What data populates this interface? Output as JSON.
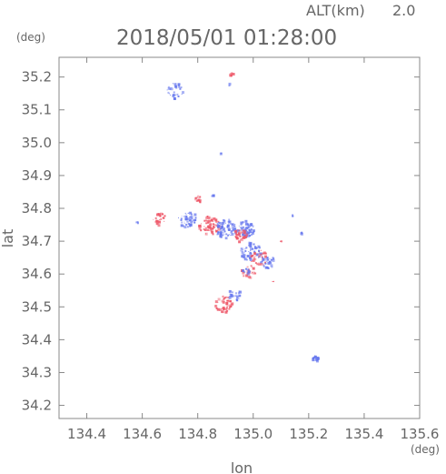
{
  "header": {
    "altitude_label": "ALT(km)",
    "altitude_value": "2.0",
    "timestamp": "2018/05/01 01:28:00",
    "y_unit": "(deg)",
    "x_unit": "(deg)"
  },
  "chart_data": {
    "type": "scatter",
    "xlabel": "lon",
    "ylabel": "lat",
    "xlim": [
      134.3,
      135.6
    ],
    "ylim": [
      34.16,
      35.26
    ],
    "x_ticks": [
      "134.4",
      "134.6",
      "134.8",
      "135.0",
      "135.2",
      "135.4",
      "135.6"
    ],
    "y_ticks": [
      "34.2",
      "34.3",
      "34.4",
      "34.5",
      "34.6",
      "34.7",
      "34.8",
      "34.9",
      "35.0",
      "35.1",
      "35.2"
    ],
    "grid": false,
    "colors": {
      "positive": "#ee5566",
      "negative": "#6677ee",
      "frame": "#888888"
    },
    "clusters": [
      {
        "lon": 134.72,
        "lat": 35.16,
        "spread": 0.025,
        "color": "negative",
        "points": 30
      },
      {
        "lon": 134.92,
        "lat": 35.21,
        "spread": 0.006,
        "color": "positive",
        "points": 10
      },
      {
        "lon": 134.91,
        "lat": 35.18,
        "spread": 0.004,
        "color": "negative",
        "points": 3
      },
      {
        "lon": 134.66,
        "lat": 34.77,
        "spread": 0.018,
        "color": "positive",
        "points": 25
      },
      {
        "lon": 134.58,
        "lat": 34.76,
        "spread": 0.004,
        "color": "negative",
        "points": 3
      },
      {
        "lon": 134.76,
        "lat": 34.77,
        "spread": 0.025,
        "color": "negative",
        "points": 50
      },
      {
        "lon": 134.84,
        "lat": 34.75,
        "spread": 0.03,
        "color": "positive",
        "points": 70
      },
      {
        "lon": 134.9,
        "lat": 34.74,
        "spread": 0.03,
        "color": "negative",
        "points": 90
      },
      {
        "lon": 134.97,
        "lat": 34.74,
        "spread": 0.025,
        "color": "negative",
        "points": 70
      },
      {
        "lon": 134.95,
        "lat": 34.72,
        "spread": 0.02,
        "color": "positive",
        "points": 40
      },
      {
        "lon": 134.8,
        "lat": 34.83,
        "spread": 0.01,
        "color": "positive",
        "points": 15
      },
      {
        "lon": 134.85,
        "lat": 34.84,
        "spread": 0.004,
        "color": "negative",
        "points": 4
      },
      {
        "lon": 134.99,
        "lat": 34.67,
        "spread": 0.03,
        "color": "negative",
        "points": 60
      },
      {
        "lon": 135.02,
        "lat": 34.65,
        "spread": 0.025,
        "color": "positive",
        "points": 40
      },
      {
        "lon": 135.05,
        "lat": 34.64,
        "spread": 0.02,
        "color": "negative",
        "points": 35
      },
      {
        "lon": 134.98,
        "lat": 34.61,
        "spread": 0.02,
        "color": "positive",
        "points": 25
      },
      {
        "lon": 134.89,
        "lat": 34.51,
        "spread": 0.025,
        "color": "positive",
        "points": 45
      },
      {
        "lon": 134.93,
        "lat": 34.54,
        "spread": 0.02,
        "color": "negative",
        "points": 25
      },
      {
        "lon": 135.22,
        "lat": 34.345,
        "spread": 0.008,
        "color": "negative",
        "points": 20
      },
      {
        "lon": 135.17,
        "lat": 34.73,
        "spread": 0.005,
        "color": "negative",
        "points": 4
      },
      {
        "lon": 135.14,
        "lat": 34.78,
        "spread": 0.003,
        "color": "negative",
        "points": 3
      },
      {
        "lon": 135.1,
        "lat": 34.7,
        "spread": 0.004,
        "color": "positive",
        "points": 3
      },
      {
        "lon": 134.88,
        "lat": 34.97,
        "spread": 0.002,
        "color": "negative",
        "points": 2
      },
      {
        "lon": 135.07,
        "lat": 34.58,
        "spread": 0.004,
        "color": "positive",
        "points": 3
      },
      {
        "lon": 134.97,
        "lat": 34.61,
        "spread": 0.01,
        "color": "negative",
        "points": 10
      }
    ]
  }
}
